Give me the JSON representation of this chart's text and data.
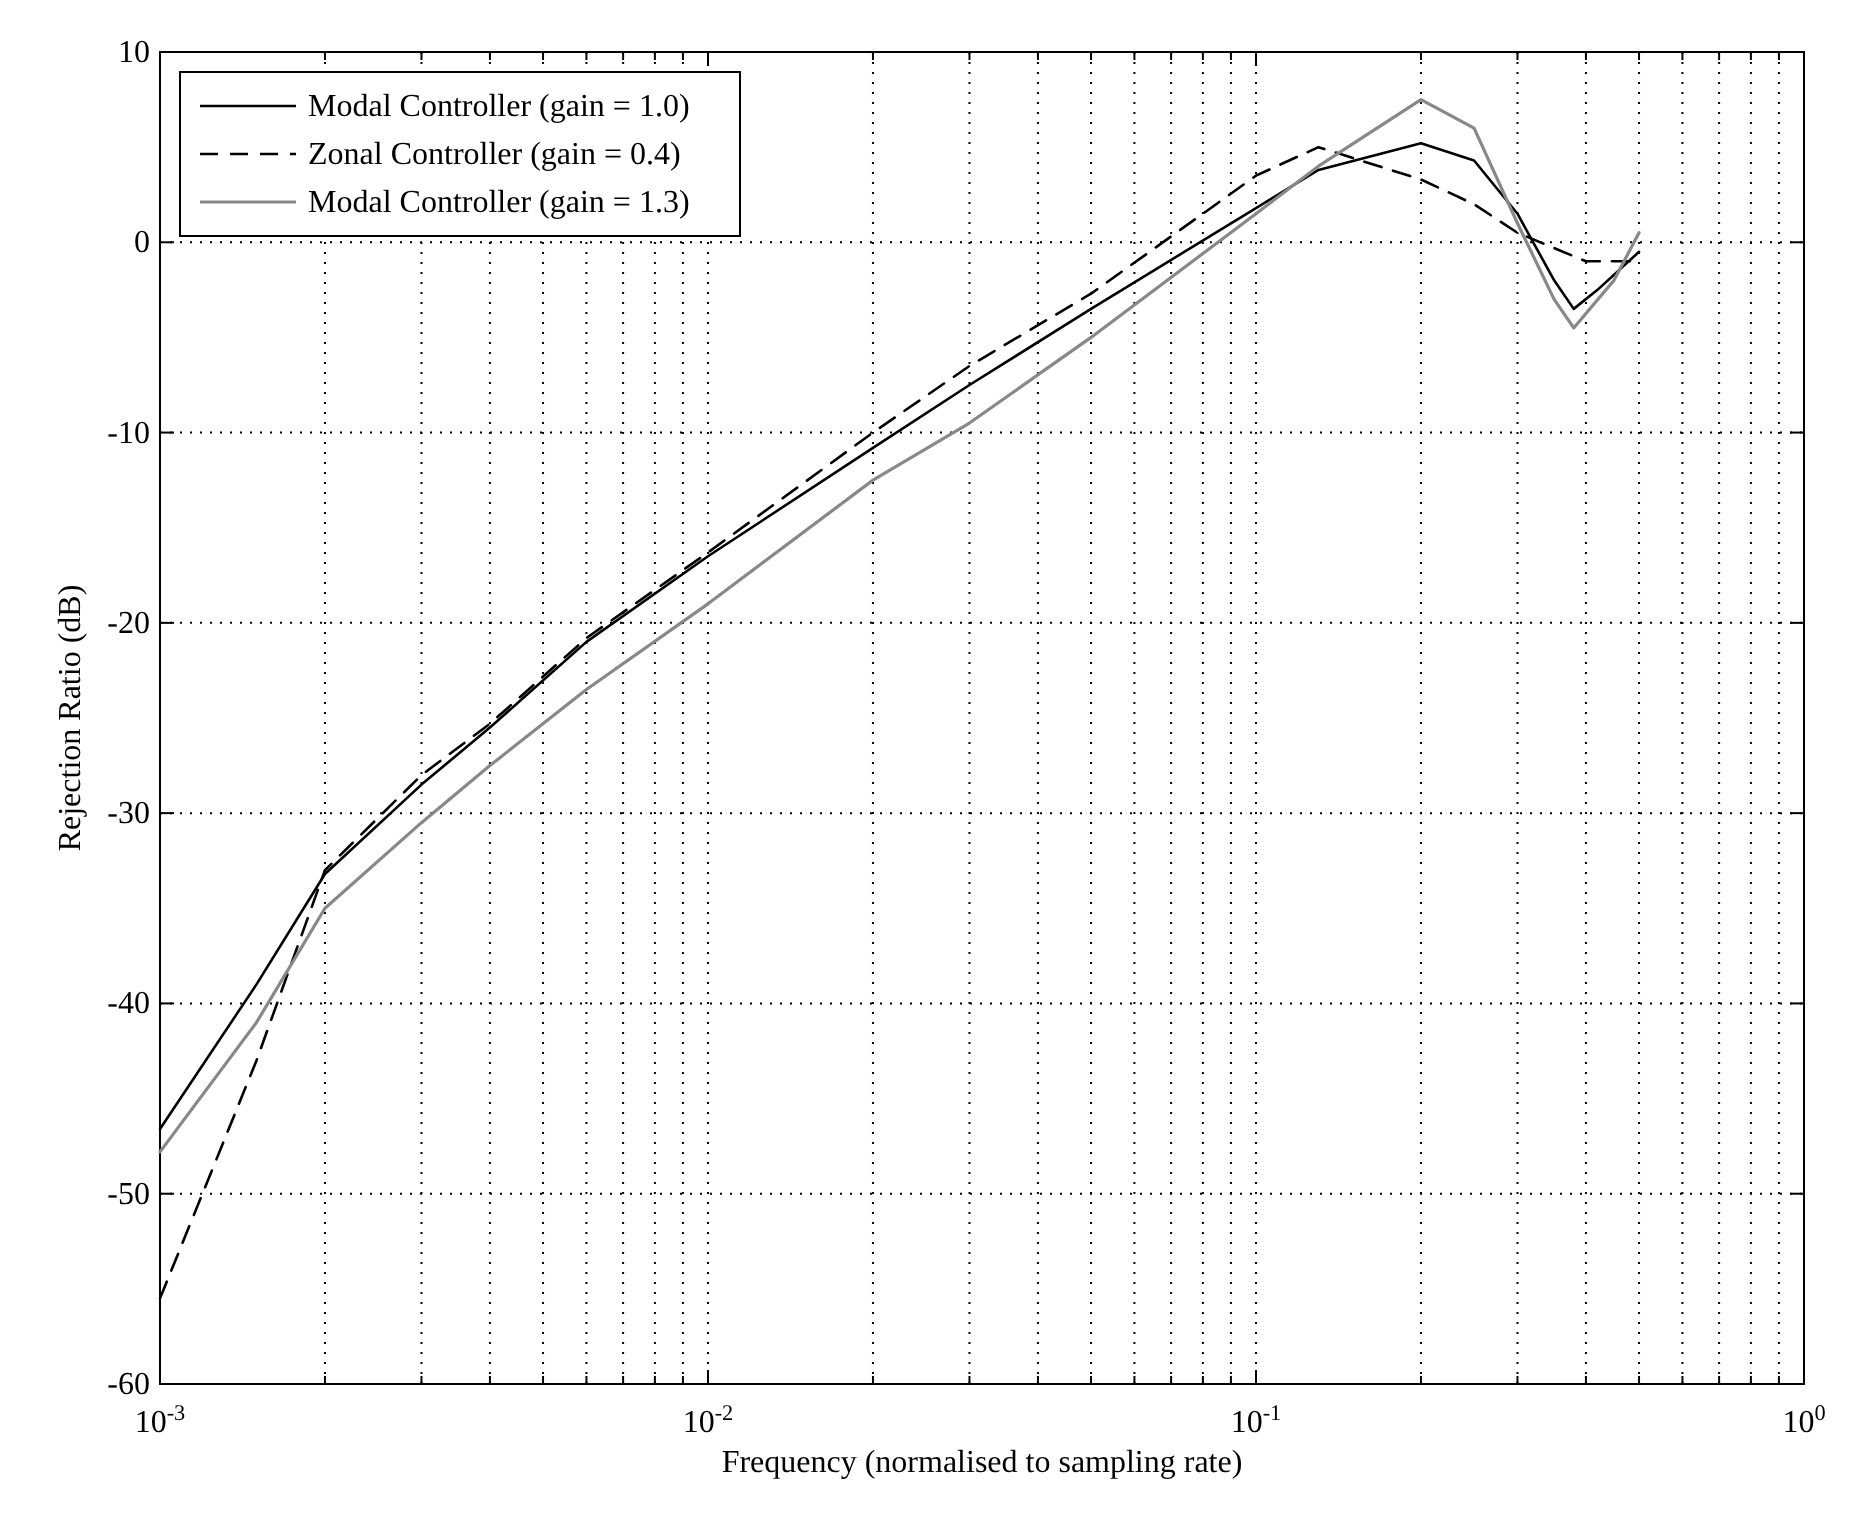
{
  "chart_data": {
    "type": "line",
    "xlabel": "Frequency (normalised to sampling rate)",
    "ylabel": "Rejection Ratio (dB)",
    "log": "x",
    "grid": true,
    "legend": "top left",
    "xlim": [
      0.001,
      1
    ],
    "xticks": [
      {
        "value": 0.001,
        "label": "10$^{-3}$"
      },
      {
        "value": 0.01,
        "label": "10$^{-2}$"
      },
      {
        "value": 0.1,
        "label": "10$^{-1}$"
      },
      {
        "value": 1,
        "label": "10$^{0}$"
      }
    ],
    "ylim": [
      -60,
      10
    ],
    "yticks": [
      -60,
      -50,
      -40,
      -30,
      -20,
      -10,
      0,
      10
    ],
    "series": [
      {
        "name": "Modal Controller (gain = 1.0)",
        "color": "#000000",
        "line_style": "solid",
        "x": [
          0.001,
          0.0015,
          0.002,
          0.003,
          0.004,
          0.006,
          0.01,
          0.02,
          0.03,
          0.05,
          0.1,
          0.13,
          0.2,
          0.25,
          0.3,
          0.35,
          0.38,
          0.42,
          0.5
        ],
        "values": [
          -46.6,
          -39,
          -33.2,
          -28.5,
          -25.5,
          -21,
          -16.5,
          -10.8,
          -7.5,
          -3.5,
          1.8,
          3.8,
          5.2,
          4.3,
          1.5,
          -2,
          -3.5,
          -2.5,
          -0.5
        ]
      },
      {
        "name": "Zonal Controller (gain = 0.4)",
        "color": "#000000",
        "line_style": "dashed",
        "x": [
          0.001,
          0.0015,
          0.002,
          0.003,
          0.004,
          0.006,
          0.01,
          0.02,
          0.03,
          0.05,
          0.1,
          0.13,
          0.2,
          0.25,
          0.3,
          0.4,
          0.5
        ],
        "values": [
          -55.5,
          -43,
          -33,
          -28,
          -25.3,
          -20.8,
          -16.3,
          -10,
          -6.5,
          -2.7,
          3.5,
          5,
          3.3,
          2,
          0.5,
          -1,
          -1
        ]
      },
      {
        "name": "Modal Controller (gain = 1.3)",
        "color": "#888888",
        "line_style": "solid",
        "x": [
          0.001,
          0.0015,
          0.002,
          0.003,
          0.004,
          0.006,
          0.01,
          0.02,
          0.03,
          0.05,
          0.1,
          0.13,
          0.2,
          0.25,
          0.3,
          0.35,
          0.38,
          0.45,
          0.5
        ],
        "values": [
          -47.8,
          -41,
          -35,
          -30.5,
          -27.5,
          -23.5,
          -19,
          -12.5,
          -9.5,
          -5,
          1.5,
          4,
          7.5,
          6,
          1,
          -3,
          -4.5,
          -2,
          0.5
        ]
      }
    ]
  }
}
